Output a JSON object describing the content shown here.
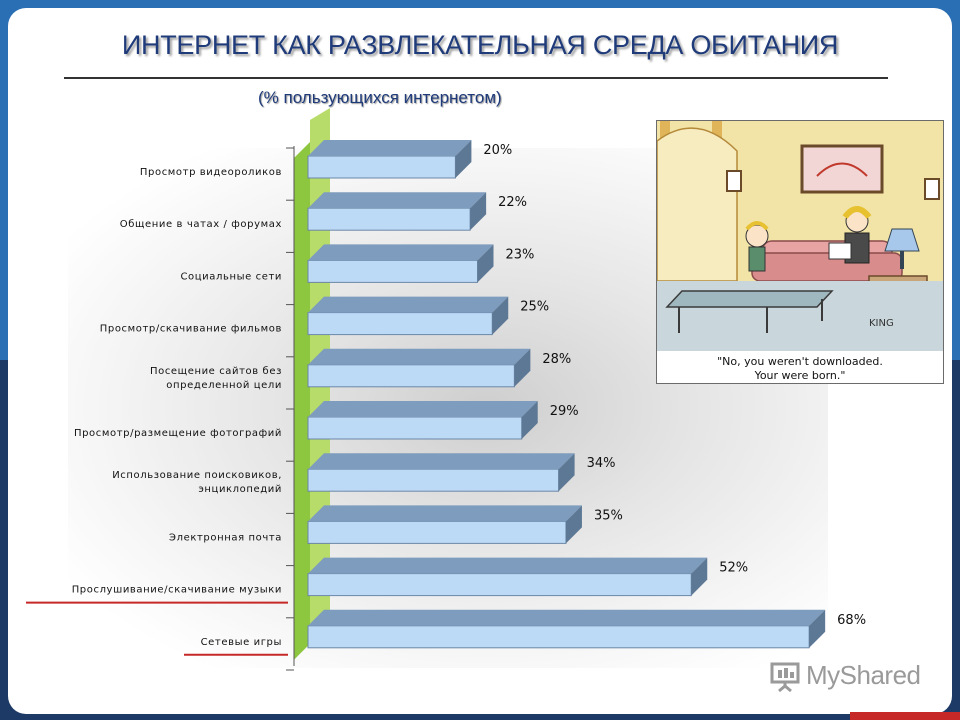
{
  "slide": {
    "title": "ИНТЕРНЕТ КАК РАЗВЛЕКАТЕЛЬНАЯ СРЕДА ОБИТАНИЯ",
    "subtitle": "(% пользующихся интернетом)"
  },
  "chart_data": {
    "type": "bar",
    "orientation": "horizontal",
    "title": "ИНТЕРНЕТ КАК РАЗВЛЕКАТЕЛЬНАЯ СРЕДА ОБИТАНИЯ",
    "subtitle": "(% пользующихся интернетом)",
    "categories": [
      "Просмотр видеороликов",
      "Общение в чатах / форумах",
      "Социальные сети",
      "Просмотр/скачивание фильмов",
      "Посещение сайтов без определенной цели",
      "Просмотр/размещение фотографий",
      "Использование поисковиков, энциклопедий",
      "Электронная почта",
      "Прослушивание/скачивание музыки",
      "Сетевые игры"
    ],
    "category_lines": [
      [
        "Просмотр видеороликов"
      ],
      [
        "Общение в чатах / форумах"
      ],
      [
        "Социальные сети"
      ],
      [
        "Просмотр/скачивание фильмов"
      ],
      [
        "Посещение сайтов без",
        "определенной цели"
      ],
      [
        "Просмотр/размещение фотографий"
      ],
      [
        "Использование поисковиков,",
        "энциклопедий"
      ],
      [
        "Электронная почта"
      ],
      [
        "Прослушивание/скачивание музыки"
      ],
      [
        "Сетевые игры"
      ]
    ],
    "values": [
      20,
      22,
      23,
      25,
      28,
      29,
      34,
      35,
      52,
      68
    ],
    "value_labels": [
      "20%",
      "22%",
      "23%",
      "25%",
      "28%",
      "29%",
      "34%",
      "35%",
      "52%",
      "68%"
    ],
    "highlighted_categories": [
      "Прослушивание/скачивание музыки",
      "Сетевые игры"
    ],
    "xlim": [
      0,
      80
    ],
    "grid": false,
    "colors": {
      "bar_front": "#bcd9f6",
      "bar_top": "#7e9cbd",
      "bar_side": "#5d7895",
      "wall": "#8dc63f",
      "highlight": "#c62828"
    }
  },
  "cartoon": {
    "caption_lines": [
      "\"No, you weren't downloaded.",
      "Your were born.\""
    ],
    "signature": "KING"
  },
  "watermark": {
    "text": "MyShared"
  }
}
